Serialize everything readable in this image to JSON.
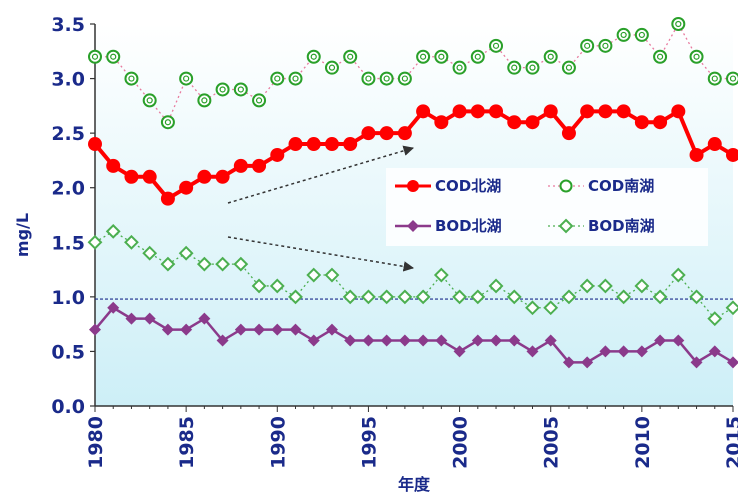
{
  "chart_data": {
    "type": "line",
    "title": "",
    "xlabel": "年度",
    "ylabel": "mg/L",
    "xlim": [
      1980,
      2015
    ],
    "ylim": [
      0,
      3.5
    ],
    "y_ticks": [
      "0.0",
      "0.5",
      "1.0",
      "1.5",
      "2.0",
      "2.5",
      "3.0",
      "3.5"
    ],
    "x_ticks": [
      "1980",
      "1985",
      "1990",
      "1995",
      "2000",
      "2005",
      "2010",
      "2015"
    ],
    "x": [
      1980,
      1981,
      1982,
      1983,
      1984,
      1985,
      1986,
      1987,
      1988,
      1989,
      1990,
      1991,
      1992,
      1993,
      1994,
      1995,
      1996,
      1997,
      1998,
      1999,
      2000,
      2001,
      2002,
      2003,
      2004,
      2005,
      2006,
      2007,
      2008,
      2009,
      2010,
      2011,
      2012,
      2013,
      2014,
      2015
    ],
    "reference_line": 0.98,
    "grid": false,
    "legend_position": "right-center",
    "series": [
      {
        "name": "COD北湖",
        "color": "#ff0000",
        "style": "solid",
        "values": [
          2.4,
          2.2,
          2.1,
          2.1,
          1.9,
          2.0,
          2.1,
          2.1,
          2.2,
          2.2,
          2.3,
          2.4,
          2.4,
          2.4,
          2.4,
          2.5,
          2.5,
          2.5,
          2.7,
          2.6,
          2.7,
          2.7,
          2.7,
          2.6,
          2.6,
          2.7,
          2.5,
          2.7,
          2.7,
          2.7,
          2.6,
          2.6,
          2.7,
          2.3,
          2.4,
          2.3
        ]
      },
      {
        "name": "COD南湖",
        "color": "#2aa02a",
        "style": "dotted",
        "values": [
          3.2,
          3.2,
          3.0,
          2.8,
          2.6,
          3.0,
          2.8,
          2.9,
          2.9,
          2.8,
          3.0,
          3.0,
          3.2,
          3.1,
          3.2,
          3.0,
          3.0,
          3.0,
          3.2,
          3.2,
          3.1,
          3.2,
          3.3,
          3.1,
          3.1,
          3.2,
          3.1,
          3.3,
          3.3,
          3.4,
          3.4,
          3.2,
          3.5,
          3.2,
          3.0,
          3.0
        ]
      },
      {
        "name": "BOD北湖",
        "color": "#8b3a8b",
        "style": "solid",
        "values": [
          0.7,
          0.9,
          0.8,
          0.8,
          0.7,
          0.7,
          0.8,
          0.6,
          0.7,
          0.7,
          0.7,
          0.7,
          0.6,
          0.7,
          0.6,
          0.6,
          0.6,
          0.6,
          0.6,
          0.6,
          0.5,
          0.6,
          0.6,
          0.6,
          0.5,
          0.6,
          0.4,
          0.4,
          0.5,
          0.5,
          0.5,
          0.6,
          0.6,
          0.4,
          0.5,
          0.4
        ]
      },
      {
        "name": "BOD南湖",
        "color": "#4caf50",
        "style": "dotted",
        "values": [
          1.5,
          1.6,
          1.5,
          1.4,
          1.3,
          1.4,
          1.3,
          1.3,
          1.3,
          1.1,
          1.1,
          1.0,
          1.2,
          1.2,
          1.0,
          1.0,
          1.0,
          1.0,
          1.0,
          1.2,
          1.0,
          1.0,
          1.1,
          1.0,
          0.9,
          0.9,
          1.0,
          1.1,
          1.1,
          1.0,
          1.1,
          1.0,
          1.2,
          1.0,
          0.8,
          0.9
        ]
      }
    ]
  }
}
